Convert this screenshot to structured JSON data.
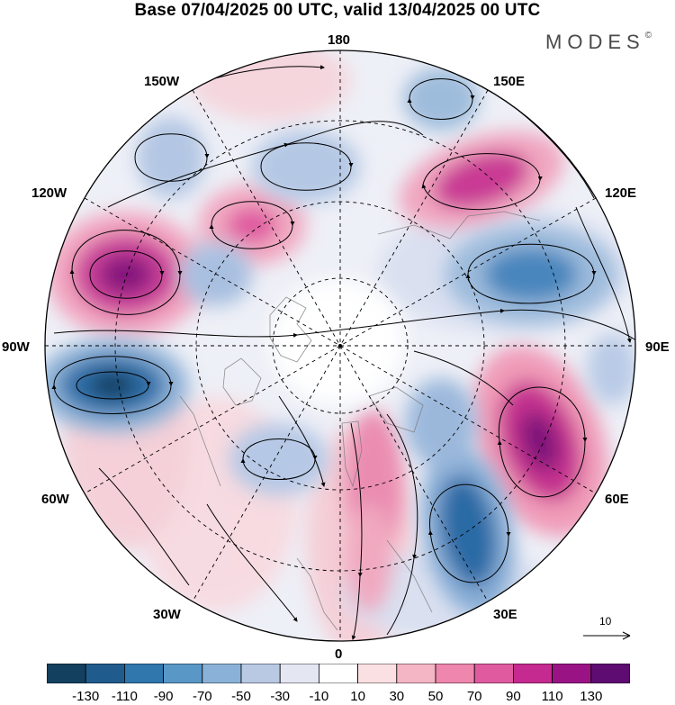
{
  "header": {
    "title": "Base 07/04/2025 00 UTC, valid 13/04/2025 00 UTC",
    "brand": "MODES",
    "brand_mark": "©"
  },
  "map": {
    "projection": "north-polar-stereographic",
    "longitude_labels": {
      "top": "180",
      "top_right": "150E",
      "upper_right": "120E",
      "right": "90E",
      "lower_right": "60E",
      "bottom_right": "30E",
      "bottom": "0",
      "bottom_left": "30W",
      "lower_left": "60W",
      "left": "90W",
      "upper_left": "120W",
      "top_left": "150W"
    },
    "field_colors": {
      "strong_negative": "#1f5b8c",
      "negative": "#6f9ecb",
      "weak_negative": "#c9d3e8",
      "near_zero": "#ffffff",
      "weak_positive": "#f6c8cf",
      "positive": "#e87aa6",
      "strong_positive": "#8a1b8a"
    }
  },
  "reference_vector": {
    "label": "10"
  },
  "colorbar": {
    "colors": [
      "#14405f",
      "#1f5b8c",
      "#2f77ad",
      "#5897c6",
      "#8ab2d8",
      "#b9c9e4",
      "#e4e6f2",
      "#ffffff",
      "#fadfe3",
      "#f4b5c4",
      "#ee86ad",
      "#e05aa0",
      "#c42a8f",
      "#9a1385",
      "#5e0b72"
    ],
    "tick_labels": [
      "-130",
      "-110",
      "-90",
      "-70",
      "-50",
      "-30",
      "-10",
      "10",
      "30",
      "50",
      "70",
      "90",
      "110",
      "130"
    ]
  }
}
